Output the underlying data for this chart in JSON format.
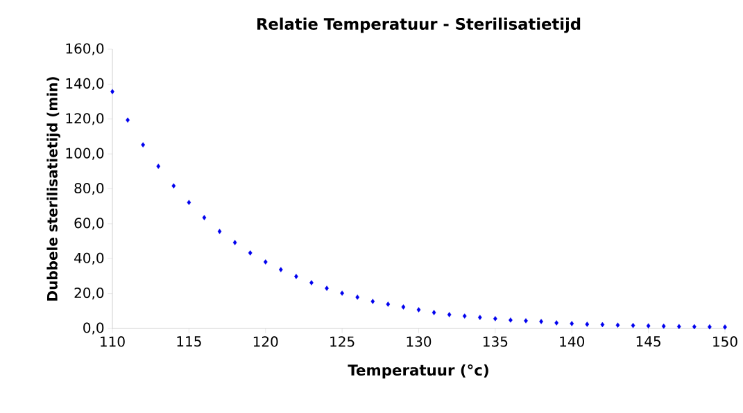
{
  "chart_data": {
    "type": "scatter",
    "title": "Relatie Temperatuur - Sterilisatietijd",
    "xlabel": "Temperatuur (°c)",
    "ylabel": "Dubbele sterilisatietijd (min)",
    "x": [
      110,
      111,
      112,
      113,
      114,
      115,
      116,
      117,
      118,
      119,
      120,
      121,
      122,
      123,
      124,
      125,
      126,
      127,
      128,
      129,
      130,
      131,
      132,
      133,
      134,
      135,
      136,
      137,
      138,
      139,
      140,
      141,
      142,
      143,
      144,
      145,
      146,
      147,
      148,
      149,
      150
    ],
    "values": [
      135.7,
      119.4,
      105.2,
      92.9,
      81.7,
      72.2,
      63.5,
      55.6,
      49.2,
      43.3,
      38.1,
      33.7,
      29.8,
      26.2,
      23.0,
      20.2,
      17.9,
      15.5,
      13.9,
      12.3,
      10.7,
      9.1,
      7.9,
      7.1,
      6.3,
      5.6,
      4.8,
      4.4,
      4.0,
      3.2,
      2.8,
      2.4,
      2.2,
      1.9,
      1.7,
      1.5,
      1.3,
      1.1,
      1.0,
      0.9,
      0.8
    ],
    "color": "#0000ee",
    "marker": "diamond",
    "grid": false,
    "xlim": [
      110,
      150
    ],
    "ylim": [
      0,
      160
    ],
    "xticks": [
      110,
      115,
      120,
      125,
      130,
      135,
      140,
      145,
      150
    ],
    "yticks": [
      {
        "value": 0,
        "label": "0,0"
      },
      {
        "value": 20,
        "label": "20,0"
      },
      {
        "value": 40,
        "label": "40,0"
      },
      {
        "value": 60,
        "label": "60,0"
      },
      {
        "value": 80,
        "label": "80,0"
      },
      {
        "value": 100,
        "label": "100,0"
      },
      {
        "value": 120,
        "label": "120,0"
      },
      {
        "value": 140,
        "label": "140,0"
      },
      {
        "value": 160,
        "label": "160,0"
      }
    ]
  }
}
